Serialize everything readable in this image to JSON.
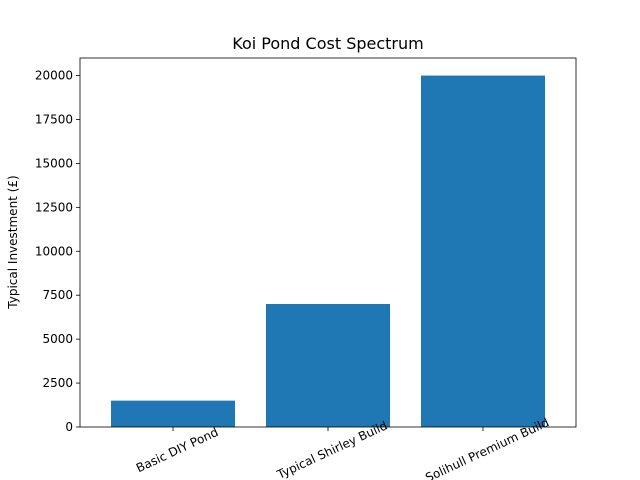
{
  "chart_data": {
    "type": "bar",
    "title": "Koi Pond Cost Spectrum",
    "xlabel": "",
    "ylabel": "Typical Investment (£)",
    "categories": [
      "Basic DIY Pond",
      "Typical Shirley Build",
      "Solihull Premium Build"
    ],
    "values": [
      1500,
      7000,
      20000
    ],
    "ylim": [
      0,
      21000
    ],
    "yticks": [
      0,
      2500,
      5000,
      7500,
      10000,
      12500,
      15000,
      17500,
      20000
    ],
    "bar_color": "#1f77b4",
    "grid": false,
    "legend": "none",
    "x_tick_rotation_deg": 25
  }
}
